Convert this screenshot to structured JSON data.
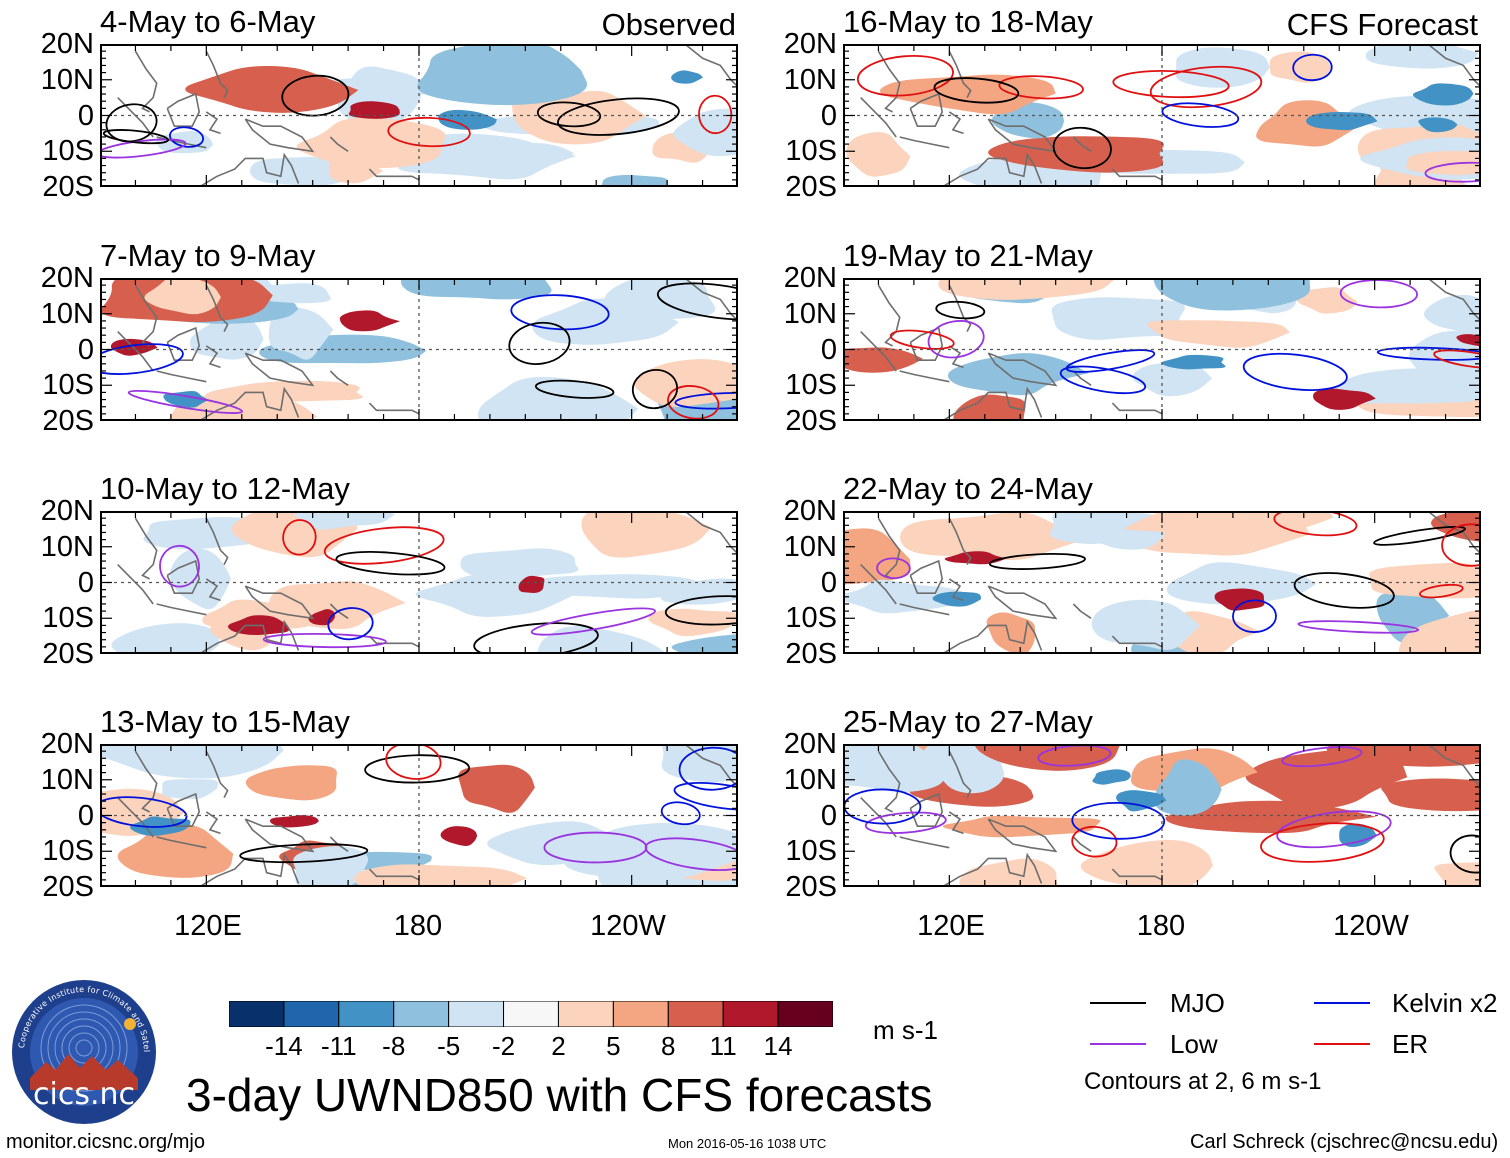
{
  "chart_data": {
    "type": "heatmap",
    "title": "3-day UWND850 with CFS forecasts",
    "variable": "UWND850",
    "units": "m s-1",
    "x_ticks": [
      "120E",
      "180",
      "120W"
    ],
    "x_tick_lon": [
      120,
      180,
      240
    ],
    "xlim_lon": [
      90,
      270
    ],
    "y_ticks": [
      "20N",
      "10N",
      "0",
      "10S",
      "20S"
    ],
    "y_tick_lat": [
      20,
      10,
      0,
      -10,
      -20
    ],
    "ylim_lat": [
      -20,
      20
    ],
    "grid": "dashed lines at equator and 180",
    "columns": [
      {
        "label": "Observed",
        "panels": [
          "4-May to 6-May",
          "7-May to 9-May",
          "10-May to 12-May",
          "13-May to 15-May"
        ]
      },
      {
        "label": "CFS Forecast",
        "panels": [
          "16-May to 18-May",
          "19-May to 21-May",
          "22-May to 24-May",
          "25-May to 27-May"
        ]
      }
    ],
    "colorbar": {
      "ticks": [
        "-14",
        "-11",
        "-8",
        "-5",
        "-2",
        "2",
        "5",
        "8",
        "11",
        "14"
      ],
      "levels": [
        -14,
        -11,
        -8,
        -5,
        -2,
        2,
        5,
        8,
        11,
        14
      ],
      "colors": [
        "#08306b",
        "#1f66ad",
        "#4292c6",
        "#8fc1de",
        "#d0e4f3",
        "#f7f7f7",
        "#fcd3bd",
        "#f4a582",
        "#d6604d",
        "#b2182b",
        "#67001f"
      ],
      "units_label": "m s-1"
    },
    "contour_legend": [
      {
        "name": "MJO",
        "color": "#000000"
      },
      {
        "name": "Kelvin x2",
        "color": "#0011dd"
      },
      {
        "name": "Low",
        "color": "#9a33e0"
      },
      {
        "name": "ER",
        "color": "#e01010"
      }
    ],
    "contour_note": "Contours at 2, 6 m s-1"
  },
  "footer": {
    "url": "monitor.cicsnc.org/mjo",
    "timestamp": "Mon 2016-05-16 1038 UTC",
    "author": "Carl Schreck (cjschrec@ncsu.edu)"
  },
  "logo": {
    "text": "cics.nc",
    "ring_text": "Cooperative Institute for Climate and Satellites"
  }
}
